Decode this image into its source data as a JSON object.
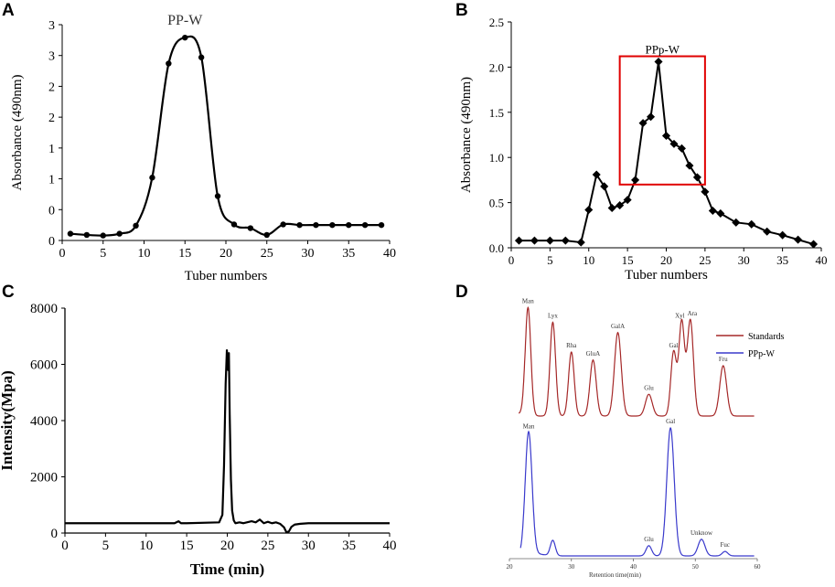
{
  "chart_data": [
    {
      "panel": "A",
      "type": "line",
      "annotation": "PP-W",
      "xlabel": "Tuber numbers",
      "ylabel": "Absorbance (490nm)",
      "xlim": [
        0,
        40
      ],
      "ylim": [
        0,
        3.5
      ],
      "xticks": [
        0,
        5,
        10,
        15,
        20,
        25,
        30,
        35,
        40
      ],
      "yticks": [
        0,
        0.5,
        1,
        1.5,
        2,
        2.5,
        3,
        3.5
      ],
      "ytick_labels": [
        "0",
        "0",
        "1",
        "1",
        "2",
        "2",
        "3",
        "3"
      ],
      "x": [
        1,
        3,
        5,
        7,
        9,
        11,
        13,
        15,
        17,
        19,
        21,
        23,
        25,
        27,
        29,
        31,
        33,
        35,
        37,
        39
      ],
      "y": [
        0.11,
        0.09,
        0.08,
        0.11,
        0.24,
        1.02,
        2.87,
        3.29,
        2.97,
        0.72,
        0.26,
        0.2,
        0.09,
        0.26,
        0.25,
        0.25,
        0.25,
        0.25,
        0.25,
        0.25
      ]
    },
    {
      "panel": "B",
      "type": "line",
      "annotation": "PPp-W",
      "xlabel": "Tuber numbers",
      "ylabel": "Absorbance (490nm)",
      "xlim": [
        0,
        40
      ],
      "ylim": [
        0,
        2.5
      ],
      "xticks": [
        0,
        5,
        10,
        15,
        20,
        25,
        30,
        35,
        40
      ],
      "yticks": [
        0,
        0.5,
        1,
        1.5,
        2,
        2.5
      ],
      "ytick_labels": [
        "0.0",
        "0.5",
        "1.0",
        "1.5",
        "2.0",
        "2.5"
      ],
      "highlight_box": {
        "x": [
          14,
          25
        ],
        "y": [
          0.7,
          2.12
        ]
      },
      "x": [
        1,
        3,
        5,
        7,
        9,
        10,
        11,
        12,
        13,
        14,
        15,
        16,
        17,
        18,
        19,
        20,
        21,
        22,
        23,
        24,
        25,
        26,
        27,
        29,
        31,
        33,
        35,
        37,
        39
      ],
      "y": [
        0.08,
        0.08,
        0.08,
        0.08,
        0.06,
        0.42,
        0.81,
        0.68,
        0.44,
        0.47,
        0.53,
        0.75,
        1.38,
        1.45,
        2.06,
        1.24,
        1.15,
        1.1,
        0.91,
        0.78,
        0.62,
        0.41,
        0.38,
        0.28,
        0.26,
        0.18,
        0.14,
        0.09,
        0.04
      ]
    },
    {
      "panel": "C",
      "type": "line",
      "xlabel": "Time (min)",
      "ylabel": "Intensity(Mpa)",
      "xlim": [
        0,
        40
      ],
      "ylim": [
        0,
        8000
      ],
      "xticks": [
        0,
        5,
        10,
        15,
        20,
        25,
        30,
        35,
        40
      ],
      "yticks": [
        0,
        2000,
        4000,
        6000,
        8000
      ],
      "x": [
        0,
        13.5,
        14,
        14.3,
        15,
        19,
        19.4,
        19.6,
        19.8,
        19.95,
        20.1,
        20.2,
        20.3,
        20.45,
        20.6,
        20.8,
        21,
        21.5,
        22,
        23,
        23.5,
        24,
        24.5,
        25,
        25.5,
        26,
        26.5,
        27,
        27.3,
        27.6,
        27.9,
        28.3,
        29,
        30,
        40
      ],
      "y": [
        350,
        350,
        420,
        350,
        350,
        380,
        650,
        2400,
        5300,
        6500,
        5800,
        6400,
        4200,
        1900,
        800,
        450,
        350,
        380,
        350,
        420,
        380,
        480,
        350,
        400,
        350,
        380,
        330,
        200,
        20,
        60,
        220,
        300,
        330,
        350,
        350
      ]
    },
    {
      "panel": "D",
      "type": "line",
      "xlabel": "Retention time(min)",
      "xlim": [
        20,
        60
      ],
      "xticks": [
        20,
        30,
        40,
        50,
        60
      ],
      "legend": [
        "Standards",
        "PPp-W"
      ],
      "series": [
        {
          "name": "Standards",
          "color": "#a52828",
          "peaks": [
            {
              "label": "Man",
              "t": 23.0,
              "h": 0.95,
              "w": 0.45
            },
            {
              "label": "Lyx",
              "t": 27.0,
              "h": 0.82,
              "w": 0.45
            },
            {
              "label": "Rha",
              "t": 30.0,
              "h": 0.56,
              "w": 0.45
            },
            {
              "label": "GluA",
              "t": 33.5,
              "h": 0.49,
              "w": 0.5
            },
            {
              "label": "GalA",
              "t": 37.5,
              "h": 0.73,
              "w": 0.55
            },
            {
              "label": "Glu",
              "t": 42.5,
              "h": 0.19,
              "w": 0.55
            },
            {
              "label": "Gal",
              "t": 46.5,
              "h": 0.56,
              "w": 0.45
            },
            {
              "label": "Xyl",
              "t": 47.8,
              "h": 0.82,
              "w": 0.45
            },
            {
              "label": "Ara",
              "t": 49.2,
              "h": 0.84,
              "w": 0.5
            },
            {
              "label": "Fru",
              "t": 54.5,
              "h": 0.44,
              "w": 0.55
            }
          ]
        },
        {
          "name": "PPp-W",
          "color": "#3a3acc",
          "peaks": [
            {
              "label": "Man",
              "t": 23.1,
              "h": 0.96,
              "w": 0.55
            },
            {
              "label": "",
              "t": 27.0,
              "h": 0.12,
              "w": 0.4
            },
            {
              "label": "Glu",
              "t": 42.5,
              "h": 0.08,
              "w": 0.45
            },
            {
              "label": "Gal",
              "t": 46.0,
              "h": 1.0,
              "w": 0.6
            },
            {
              "label": "Unknow",
              "t": 51.0,
              "h": 0.13,
              "w": 0.55
            },
            {
              "label": "Fuc",
              "t": 54.8,
              "h": 0.035,
              "w": 0.45
            }
          ]
        }
      ]
    }
  ],
  "panels": {
    "a": "A",
    "b": "B",
    "c": "C",
    "d": "D"
  },
  "lyx_label_color": "#22bb22"
}
